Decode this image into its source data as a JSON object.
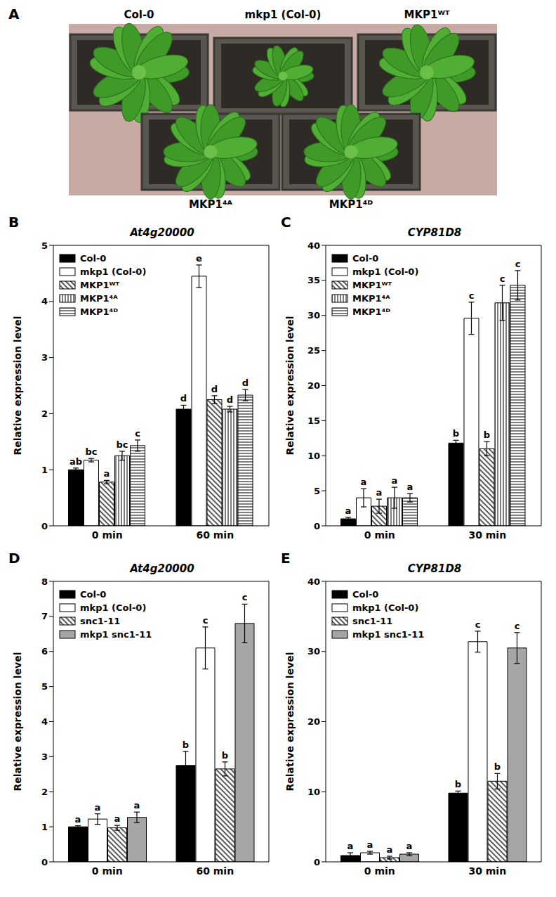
{
  "photo": {
    "panel": "A",
    "labels": [
      "Col-0",
      "mkp1 (Col-0)",
      "MKP1ᵂᵀ",
      "MKP1⁴ᴬ",
      "MKP1⁴ᴰ"
    ]
  },
  "chart_data": [
    {
      "panel": "B",
      "type": "bar",
      "title": "At4g20000",
      "y_label": "Relative expression level",
      "categories": [
        "0 min",
        "60 min"
      ],
      "ylim": [
        0,
        5
      ],
      "yticks": [
        0,
        1,
        2,
        3,
        4,
        5
      ],
      "legend": "upper left",
      "series": [
        {
          "name": "Col-0",
          "color": "#000000",
          "marker": "solid",
          "values": [
            1.0,
            2.08
          ],
          "errors": [
            0.03,
            0.07
          ],
          "letters": [
            "ab",
            "d"
          ]
        },
        {
          "name": "mkp1 (Col-0)",
          "color": "#ffffff",
          "marker": "solid",
          "values": [
            1.17,
            4.45
          ],
          "errors": [
            0.03,
            0.2
          ],
          "letters": [
            "bc",
            "e"
          ]
        },
        {
          "name": "MKP1ᵂᵀ",
          "color": "#ffffff",
          "marker": "diagonal",
          "values": [
            0.78,
            2.25
          ],
          "errors": [
            0.03,
            0.07
          ],
          "letters": [
            "a",
            "d"
          ]
        },
        {
          "name": "MKP1⁴ᴬ",
          "color": "#ffffff",
          "marker": "vertical",
          "values": [
            1.25,
            2.08
          ],
          "errors": [
            0.08,
            0.05
          ],
          "letters": [
            "bc",
            "d"
          ]
        },
        {
          "name": "MKP1⁴ᴰ",
          "color": "#ffffff",
          "marker": "horizontal",
          "values": [
            1.43,
            2.33
          ],
          "errors": [
            0.1,
            0.1
          ],
          "letters": [
            "c",
            "d"
          ]
        }
      ]
    },
    {
      "panel": "C",
      "type": "bar",
      "title": "CYP81D8",
      "y_label": "Relative expression level",
      "categories": [
        "0 min",
        "30 min"
      ],
      "ylim": [
        0,
        40
      ],
      "yticks": [
        0,
        5,
        10,
        15,
        20,
        25,
        30,
        35,
        40
      ],
      "legend": "upper left",
      "series": [
        {
          "name": "Col-0",
          "color": "#000000",
          "marker": "solid",
          "values": [
            1.0,
            11.8
          ],
          "errors": [
            0.2,
            0.4
          ],
          "letters": [
            "a",
            "b"
          ]
        },
        {
          "name": "mkp1 (Col-0)",
          "color": "#ffffff",
          "marker": "solid",
          "values": [
            4.0,
            29.6
          ],
          "errors": [
            1.3,
            2.3
          ],
          "letters": [
            "a",
            "c"
          ]
        },
        {
          "name": "MKP1ᵂᵀ",
          "color": "#ffffff",
          "marker": "diagonal",
          "values": [
            2.8,
            11.0
          ],
          "errors": [
            1.0,
            1.0
          ],
          "letters": [
            "a",
            "b"
          ]
        },
        {
          "name": "MKP1⁴ᴬ",
          "color": "#ffffff",
          "marker": "vertical",
          "values": [
            4.0,
            31.8
          ],
          "errors": [
            1.5,
            2.5
          ],
          "letters": [
            "a",
            "c"
          ]
        },
        {
          "name": "MKP1⁴ᴰ",
          "color": "#ffffff",
          "marker": "horizontal",
          "values": [
            4.0,
            34.3
          ],
          "errors": [
            0.6,
            2.1
          ],
          "letters": [
            "a",
            "c"
          ]
        }
      ]
    },
    {
      "panel": "D",
      "type": "bar",
      "title": "At4g20000",
      "y_label": "Relative expression level",
      "categories": [
        "0 min",
        "60 min"
      ],
      "ylim": [
        0,
        8
      ],
      "yticks": [
        0,
        1,
        2,
        3,
        4,
        5,
        6,
        7,
        8
      ],
      "legend": "upper left",
      "series": [
        {
          "name": "Col-0",
          "color": "#000000",
          "marker": "solid",
          "values": [
            1.0,
            2.75
          ],
          "errors": [
            0.03,
            0.4
          ],
          "letters": [
            "a",
            "b"
          ]
        },
        {
          "name": "mkp1 (Col-0)",
          "color": "#ffffff",
          "marker": "solid",
          "values": [
            1.22,
            6.1
          ],
          "errors": [
            0.15,
            0.6
          ],
          "letters": [
            "a",
            "c"
          ]
        },
        {
          "name": "snc1-11",
          "color": "#ffffff",
          "marker": "diagonal",
          "values": [
            0.97,
            2.65
          ],
          "errors": [
            0.07,
            0.2
          ],
          "letters": [
            "a",
            "b"
          ]
        },
        {
          "name": "mkp1 snc1-11",
          "color": "#a6a6a6",
          "marker": "solid",
          "values": [
            1.27,
            6.8
          ],
          "errors": [
            0.15,
            0.55
          ],
          "letters": [
            "a",
            "c"
          ]
        }
      ]
    },
    {
      "panel": "E",
      "type": "bar",
      "title": "CYP81D8",
      "y_label": "Relative expression level",
      "categories": [
        "0 min",
        "30 min"
      ],
      "ylim": [
        0,
        40
      ],
      "yticks": [
        0,
        10,
        20,
        30,
        40
      ],
      "legend": "upper left",
      "series": [
        {
          "name": "Col-0",
          "color": "#000000",
          "marker": "solid",
          "values": [
            0.9,
            9.8
          ],
          "errors": [
            0.4,
            0.3
          ],
          "letters": [
            "a",
            "b"
          ]
        },
        {
          "name": "mkp1 (Col-0)",
          "color": "#ffffff",
          "marker": "solid",
          "values": [
            1.3,
            31.4
          ],
          "errors": [
            0.2,
            1.5
          ],
          "letters": [
            "a",
            "c"
          ]
        },
        {
          "name": "snc1-11",
          "color": "#ffffff",
          "marker": "diagonal",
          "values": [
            0.6,
            11.5
          ],
          "errors": [
            0.2,
            1.1
          ],
          "letters": [
            "a",
            "b"
          ]
        },
        {
          "name": "mkp1 snc1-11",
          "color": "#a6a6a6",
          "marker": "solid",
          "values": [
            1.1,
            30.5
          ],
          "errors": [
            0.2,
            2.2
          ],
          "letters": [
            "a",
            "c"
          ]
        }
      ]
    }
  ]
}
